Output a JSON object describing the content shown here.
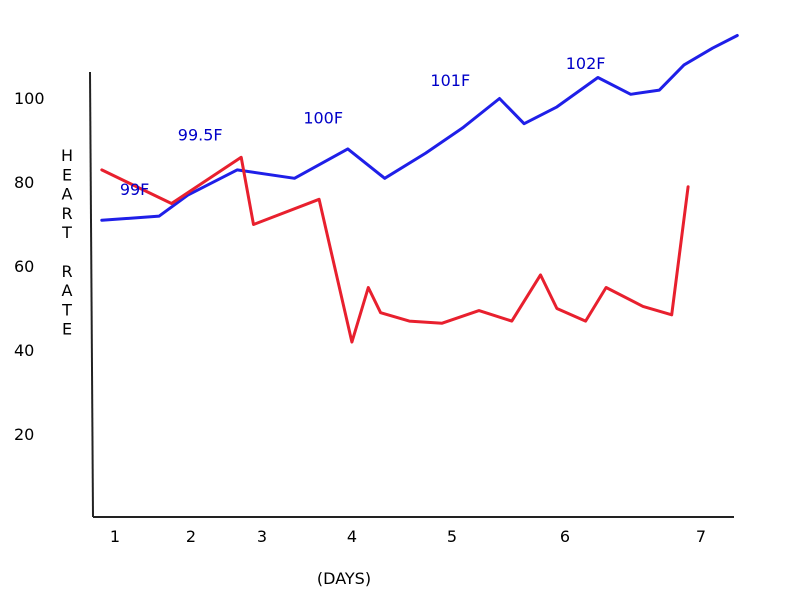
{
  "chart_data": {
    "type": "line",
    "title": "",
    "ylabel": "HEART RATE",
    "xlabel": "(DAYS)",
    "x_ticks": [
      "1",
      "2",
      "3",
      "4",
      "5",
      "6",
      "7"
    ],
    "y_ticks": [
      "20",
      "40",
      "60",
      "80",
      "100"
    ],
    "ylim": [
      0,
      105
    ],
    "grid": false,
    "series": [
      {
        "color": "#1f1fe8",
        "x": [
          0.9,
          1.6,
          1.95,
          2.55,
          3.25,
          3.9,
          4.35,
          4.85,
          5.3,
          5.75,
          6.05,
          6.45,
          6.95,
          7.35,
          7.7,
          8.0,
          8.35,
          8.65
        ],
        "y": [
          71,
          72,
          77,
          83,
          81,
          88,
          81,
          87,
          93,
          100,
          94,
          98,
          105,
          101,
          102,
          108,
          112,
          115
        ]
      },
      {
        "color": "#e8202e",
        "x": [
          0.9,
          1.75,
          2.6,
          2.75,
          3.55,
          3.95,
          4.15,
          4.3,
          4.65,
          5.05,
          5.5,
          5.9,
          6.25,
          6.45,
          6.8,
          7.05,
          7.5,
          7.85,
          8.05
        ],
        "y": [
          83,
          75,
          86,
          70,
          76,
          42,
          55,
          49,
          47,
          46.5,
          49.5,
          47,
          58,
          50,
          47,
          55,
          50.5,
          48.5,
          79
        ]
      }
    ],
    "annotations": [
      {
        "text": "99F",
        "x": 1.3,
        "y": 77
      },
      {
        "text": "99.5F",
        "x": 2.1,
        "y": 90
      },
      {
        "text": "100F",
        "x": 3.6,
        "y": 94
      },
      {
        "text": "101F",
        "x": 5.15,
        "y": 103
      },
      {
        "text": "102F",
        "x": 6.8,
        "y": 107
      }
    ]
  }
}
